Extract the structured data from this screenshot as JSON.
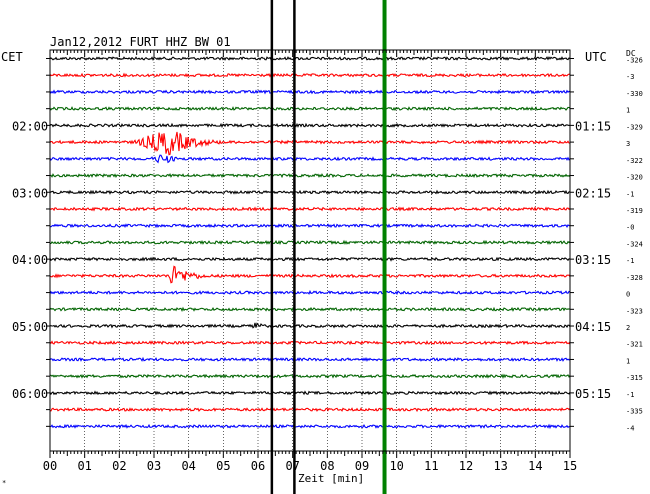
{
  "chart_data": {
    "type": "line",
    "title": "Jan12,2012   FURT HHZ BW 01",
    "left_timezone": "CET",
    "right_timezone": "UTC",
    "dc_header": "DC",
    "xlabel": "Zeit [min]",
    "x_ticks": [
      "00",
      "01",
      "02",
      "03",
      "04",
      "05",
      "06",
      "07",
      "08",
      "09",
      "10",
      "11",
      "12",
      "13",
      "14",
      "15"
    ],
    "xlim": [
      0,
      15
    ],
    "left_hour_labels": [
      {
        "trace": 4,
        "text": "02:00"
      },
      {
        "trace": 8,
        "text": "03:00"
      },
      {
        "trace": 12,
        "text": "04:00"
      },
      {
        "trace": 16,
        "text": "05:00"
      },
      {
        "trace": 20,
        "text": "06:00"
      }
    ],
    "right_hour_labels": [
      {
        "trace": 4,
        "text": "01:15"
      },
      {
        "trace": 8,
        "text": "02:15"
      },
      {
        "trace": 12,
        "text": "03:15"
      },
      {
        "trace": 16,
        "text": "04:15"
      },
      {
        "trace": 20,
        "text": "05:15"
      }
    ],
    "trace_colors": [
      "#000000",
      "#ff0000",
      "#0000ff",
      "#006400"
    ],
    "dc_offsets": [
      "-326",
      "-3",
      "-330",
      "1",
      "-329",
      "3",
      "-322",
      "-320",
      "-1",
      "-319",
      "-0",
      "-324",
      "-1",
      "-328",
      "0",
      "-323",
      "2",
      "-321",
      "1",
      "-315",
      "-1",
      "-335",
      "-4"
    ],
    "events": [
      {
        "name": "earthquake",
        "trace": 5,
        "start_min": 2.3,
        "end_min": 5.6,
        "amplitude": "large"
      },
      {
        "name": "earthquake-aftershock",
        "trace": 6,
        "start_min": 2.8,
        "end_min": 4.2,
        "amplitude": "small"
      },
      {
        "name": "local-event",
        "trace": 13,
        "start_min": 3.4,
        "end_min": 5.2,
        "amplitude": "medium"
      },
      {
        "name": "local-event",
        "trace": 16,
        "start_min": 5.8,
        "end_min": 6.6,
        "amplitude": "small"
      }
    ],
    "vertical_markers": [
      {
        "name": "black-marker",
        "x_min": 6.4,
        "color": "#000000"
      },
      {
        "name": "black-marker",
        "x_min": 7.05,
        "color": "#000000"
      },
      {
        "name": "green-marker",
        "x_min": 9.65,
        "color": "#008000"
      }
    ],
    "grid": true
  },
  "footer_mark": "*"
}
